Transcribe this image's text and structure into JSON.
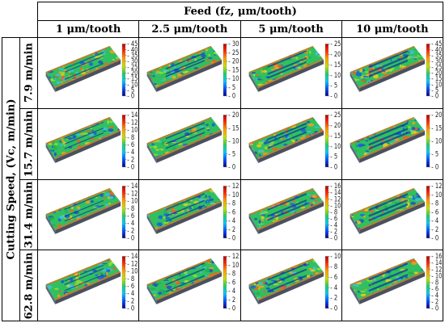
{
  "header": {
    "feed_title": "Feed (fz, μm/tooth)",
    "speed_title": "Cutting Speed, (Vc, m/min)"
  },
  "columns": [
    "1 μm/tooth",
    "2.5 μm/tooth",
    "5 μm/tooth",
    "10 μm/tooth"
  ],
  "rows": [
    "7.9 m/min",
    "15.7 m/min",
    "31.4 m/min",
    "62.8 m/min"
  ],
  "colorbar_colors": [
    "#00008b",
    "#0050ff",
    "#00c8ff",
    "#20d060",
    "#c8e000",
    "#ffa000",
    "#ff3000",
    "#b80000"
  ],
  "cells": [
    [
      {
        "ticks": [
          0,
          5,
          10,
          15,
          20,
          25,
          30,
          35,
          40,
          45
        ]
      },
      {
        "ticks": [
          0,
          5,
          10,
          15,
          20,
          25,
          30
        ]
      },
      {
        "ticks": [
          0,
          5,
          10,
          15,
          20,
          25
        ]
      },
      {
        "ticks": [
          0,
          5,
          10,
          15,
          20,
          25,
          30,
          35,
          40,
          45
        ]
      }
    ],
    [
      {
        "ticks": [
          0,
          2,
          4,
          6,
          8,
          10,
          12,
          14
        ]
      },
      {
        "ticks": [
          0,
          5,
          10,
          15,
          20
        ]
      },
      {
        "ticks": [
          0,
          5,
          10,
          15,
          20,
          25
        ]
      },
      {
        "ticks": [
          0,
          5,
          10,
          15,
          20
        ]
      }
    ],
    [
      {
        "ticks": [
          0,
          2,
          4,
          6,
          8,
          10,
          12,
          14
        ]
      },
      {
        "ticks": [
          0,
          2,
          4,
          6,
          8,
          10,
          12
        ]
      },
      {
        "ticks": [
          0,
          2,
          4,
          6,
          8,
          10,
          12,
          14,
          16
        ]
      },
      {
        "ticks": [
          0,
          2,
          4,
          6,
          8,
          10,
          12
        ]
      }
    ],
    [
      {
        "ticks": [
          0,
          2,
          4,
          6,
          8,
          10,
          12,
          14
        ]
      },
      {
        "ticks": [
          0,
          2,
          4,
          6,
          8,
          10,
          12
        ]
      },
      {
        "ticks": [
          0,
          2,
          4,
          6,
          8,
          10
        ]
      },
      {
        "ticks": [
          0,
          2,
          4,
          6,
          8,
          10,
          12,
          14,
          16
        ]
      }
    ]
  ]
}
